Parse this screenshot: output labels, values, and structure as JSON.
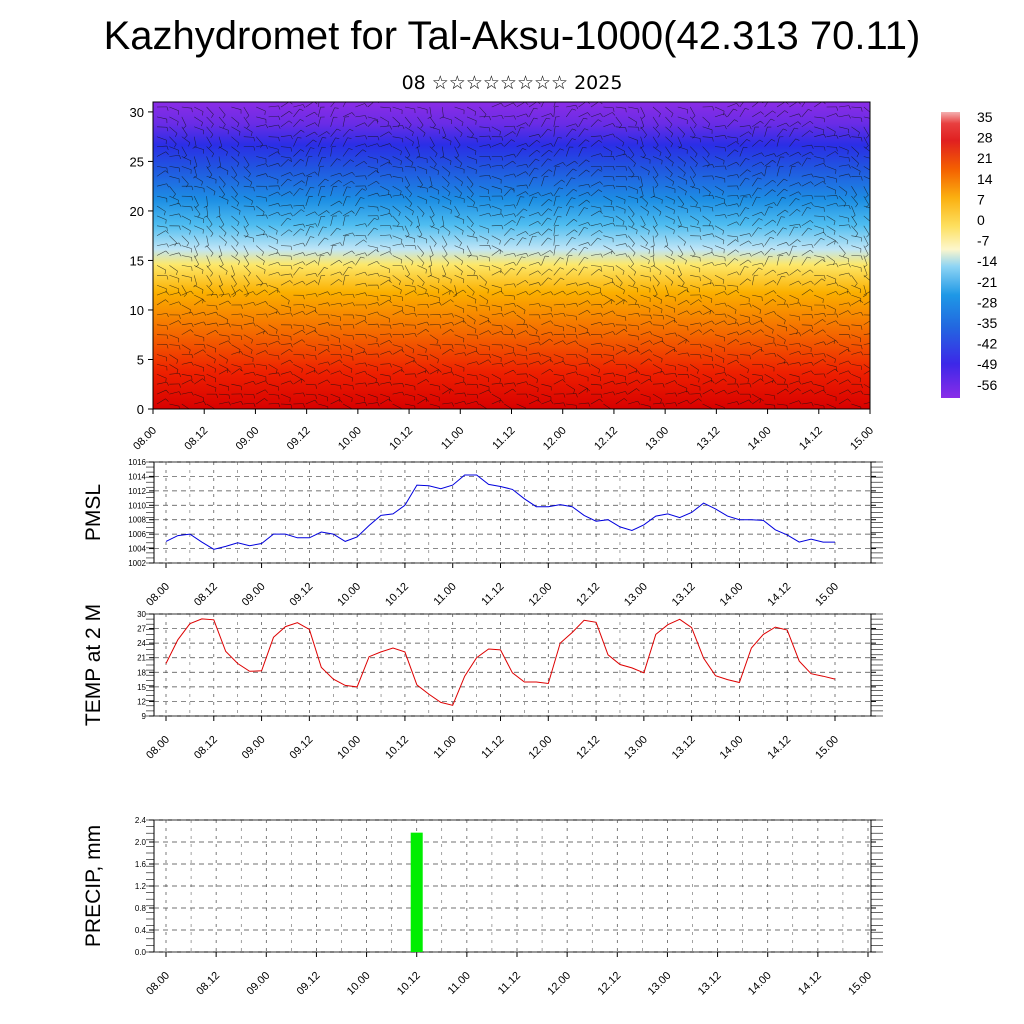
{
  "title": "Kazhydromet for Tal-Aksu-1000(42.313 70.11)",
  "subtitle": "08 ☆☆☆☆☆☆☆☆ 2025",
  "chart_data": [
    {
      "type": "heatmap",
      "description_variable": "temperature vs height with wind barbs",
      "x_tick_labels": [
        "08.00",
        "08.12",
        "09.00",
        "09.12",
        "10.00",
        "10.12",
        "11.00",
        "11.12",
        "12.00",
        "12.12",
        "13.00",
        "13.12",
        "14.00",
        "14.12",
        "15.00"
      ],
      "y_tick_labels": [
        "0",
        "5",
        "10",
        "15",
        "20",
        "25",
        "30"
      ],
      "ylim": [
        0,
        31
      ],
      "colorbar_labels": [
        "35",
        "28",
        "21",
        "14",
        "7",
        "0",
        "-7",
        "-14",
        "-21",
        "-28",
        "-35",
        "-42",
        "-49",
        "-56"
      ],
      "colorbar_colors": [
        "#f2a3a3",
        "#e02020",
        "#e02020",
        "#ee4000",
        "#f58a00",
        "#fbb514",
        "#fde26a",
        "#fdf5c0",
        "#9fd9f4",
        "#34b4ee",
        "#1e8fe0",
        "#2060e0",
        "#3c28e8",
        "#7a2ce8"
      ]
    },
    {
      "type": "line",
      "ylabel": "PMSL",
      "ylim": [
        1002,
        1016
      ],
      "y_tick_labels": [
        "1002",
        "1004",
        "1006",
        "1008",
        "1010",
        "1012",
        "1014",
        "1016"
      ],
      "x_tick_labels": [
        "08.00",
        "08.12",
        "09.00",
        "09.12",
        "10.00",
        "10.12",
        "11.00",
        "11.12",
        "12.00",
        "12.12",
        "13.00",
        "13.12",
        "14.00",
        "14.12",
        "15.00"
      ],
      "color": "#0000dd",
      "values": [
        1005.0,
        1005.8,
        1006.0,
        1004.9,
        1003.9,
        1004.3,
        1004.8,
        1004.4,
        1004.7,
        1006.0,
        1006.0,
        1005.5,
        1005.5,
        1006.3,
        1006.0,
        1005.0,
        1005.6,
        1007.2,
        1008.6,
        1008.8,
        1010.0,
        1012.8,
        1012.7,
        1012.3,
        1012.8,
        1014.2,
        1014.2,
        1012.9,
        1012.6,
        1012.2,
        1010.9,
        1009.8,
        1009.8,
        1010.1,
        1009.8,
        1008.6,
        1007.8,
        1008.0,
        1007.0,
        1006.5,
        1007.3,
        1008.5,
        1008.8,
        1008.3,
        1009.0,
        1010.3,
        1009.5,
        1008.5,
        1008.0,
        1008.0,
        1007.9,
        1006.6,
        1005.9,
        1004.9,
        1005.3,
        1004.9,
        1004.9
      ]
    },
    {
      "type": "line",
      "ylabel": "TEMP at 2 M",
      "ylim": [
        9,
        30
      ],
      "y_tick_labels": [
        "9",
        "12",
        "15",
        "18",
        "21",
        "24",
        "27",
        "30"
      ],
      "x_tick_labels": [
        "08.00",
        "08.12",
        "09.00",
        "09.12",
        "10.00",
        "10.12",
        "11.00",
        "11.12",
        "12.00",
        "12.12",
        "13.00",
        "13.12",
        "14.00",
        "14.12",
        "15.00"
      ],
      "color": "#dd0000",
      "values": [
        19.8,
        24.7,
        28.0,
        29.0,
        28.8,
        22.3,
        19.8,
        18.2,
        18.3,
        25.2,
        27.4,
        28.2,
        26.8,
        19.0,
        16.6,
        15.3,
        15.0,
        21.2,
        22.2,
        23.0,
        22.2,
        15.4,
        13.5,
        11.8,
        11.2,
        17.2,
        21.0,
        22.8,
        22.6,
        17.9,
        16.0,
        16.0,
        15.7,
        24.0,
        26.2,
        28.7,
        28.3,
        21.6,
        19.6,
        18.9,
        17.9,
        25.8,
        27.8,
        28.9,
        27.2,
        20.9,
        17.3,
        16.5,
        15.9,
        23.0,
        25.8,
        27.3,
        26.7,
        20.3,
        17.7,
        17.2,
        16.6
      ]
    },
    {
      "type": "bar",
      "ylabel": "PRECIP, mm",
      "ylim": [
        0,
        2.4
      ],
      "y_tick_labels": [
        "0.0",
        "0.4",
        "0.8",
        "1.2",
        "1.6",
        "2.0",
        "2.4"
      ],
      "x_tick_labels": [
        "08.00",
        "08.12",
        "09.00",
        "09.12",
        "10.00",
        "10.12",
        "11.00",
        "11.12",
        "12.00",
        "12.12",
        "13.00",
        "13.12",
        "14.00",
        "14.12",
        "15.00"
      ],
      "color": "#00ee00",
      "bars": [
        {
          "x": "10.12",
          "value": 2.17
        }
      ]
    }
  ]
}
